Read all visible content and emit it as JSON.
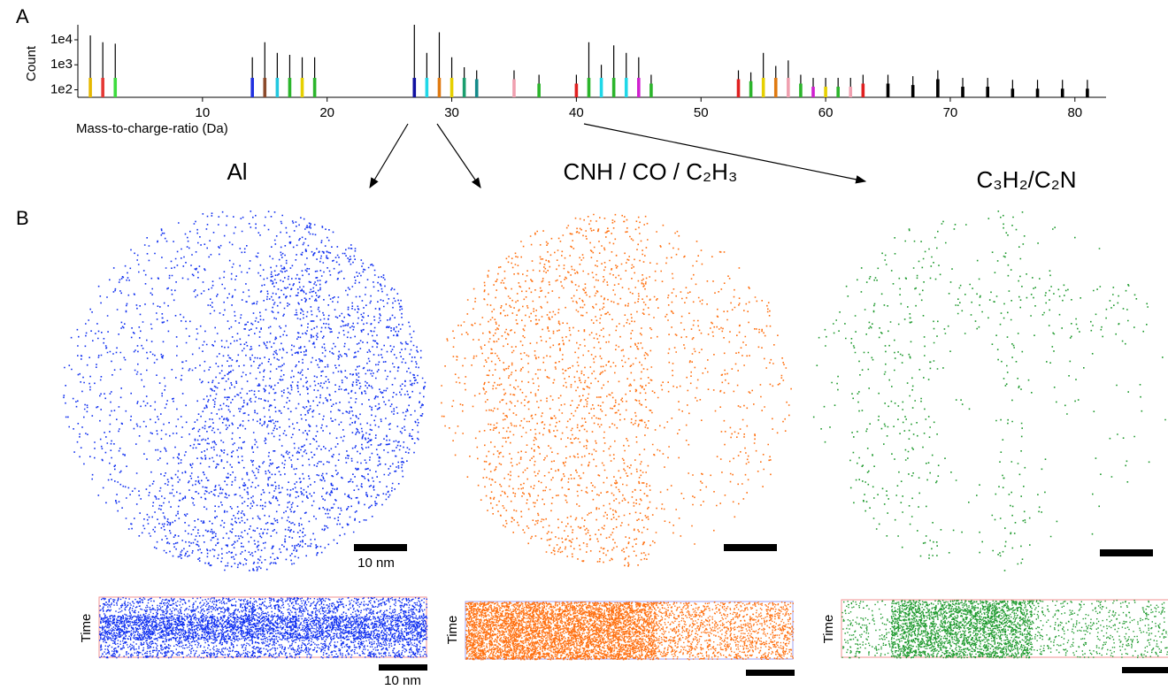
{
  "panel_labels": [
    "A",
    "B"
  ],
  "chart_data": {
    "type": "stem",
    "ylabel": "Count",
    "xlabel": "Mass-to-charge-ratio  (Da)",
    "log_y": true,
    "xlim": [
      0,
      82.5
    ],
    "ylim": [
      50,
      40000
    ],
    "xticks": [
      10,
      20,
      30,
      40,
      50,
      60,
      70,
      80
    ],
    "yticks": [
      {
        "value": 100,
        "label": "1e2"
      },
      {
        "value": 1000,
        "label": "1e3"
      },
      {
        "value": 10000,
        "label": "1e4"
      }
    ],
    "x": [
      1,
      2,
      3,
      14,
      15,
      16,
      17,
      18,
      19,
      27,
      28,
      29,
      30,
      31,
      32,
      35,
      37,
      40,
      41,
      42,
      43,
      44,
      45,
      46,
      53,
      54,
      55,
      56,
      57,
      58,
      59,
      60,
      61,
      62,
      63,
      65,
      67,
      69,
      71,
      73,
      75,
      77,
      79,
      81
    ],
    "values": [
      15000,
      8000,
      7000,
      2000,
      8000,
      3000,
      2500,
      2000,
      2000,
      40000,
      3000,
      20000,
      2000,
      800,
      600,
      600,
      400,
      400,
      8000,
      1000,
      6000,
      3000,
      2000,
      400,
      600,
      500,
      3000,
      900,
      1500,
      400,
      300,
      300,
      300,
      300,
      400,
      400,
      350,
      600,
      300,
      300,
      250,
      250,
      250,
      250
    ],
    "colors": [
      "#e6b800",
      "#e53935",
      "#3ddc3d",
      "#2030e0",
      "#8b4a2b",
      "#22c8e0",
      "#2bb52b",
      "#e6d000",
      "#2bb52b",
      "#1010a0",
      "#20d8e8",
      "#e07a10",
      "#e6d000",
      "#1a9e6e",
      "#148a8a",
      "#f0a0b0",
      "#2bb52b",
      "#e02020",
      "#2bb52b",
      "#20d8e8",
      "#2bb52b",
      "#20d8e8",
      "#d020d0",
      "#2bb52b",
      "#e02020",
      "#2bb52b",
      "#e6d000",
      "#e07a10",
      "#f0a0b0",
      "#2bb52b",
      "#d020d0",
      "#e6d000",
      "#2bb52b",
      "#f0a0b0",
      "#e02020",
      "#000000",
      "#000000",
      "#000000",
      "#000000",
      "#000000",
      "#000000",
      "#000000",
      "#000000",
      "#000000"
    ]
  },
  "maps": [
    {
      "label": "Al",
      "color": "#1030f0"
    },
    {
      "label": "CNH / CO / C₂H₃",
      "color": "#ff7010"
    },
    {
      "label": "C₃H₂/C₂N",
      "color": "#1f9a2e"
    }
  ],
  "scale_label": "10 nm",
  "time_label": "Time"
}
